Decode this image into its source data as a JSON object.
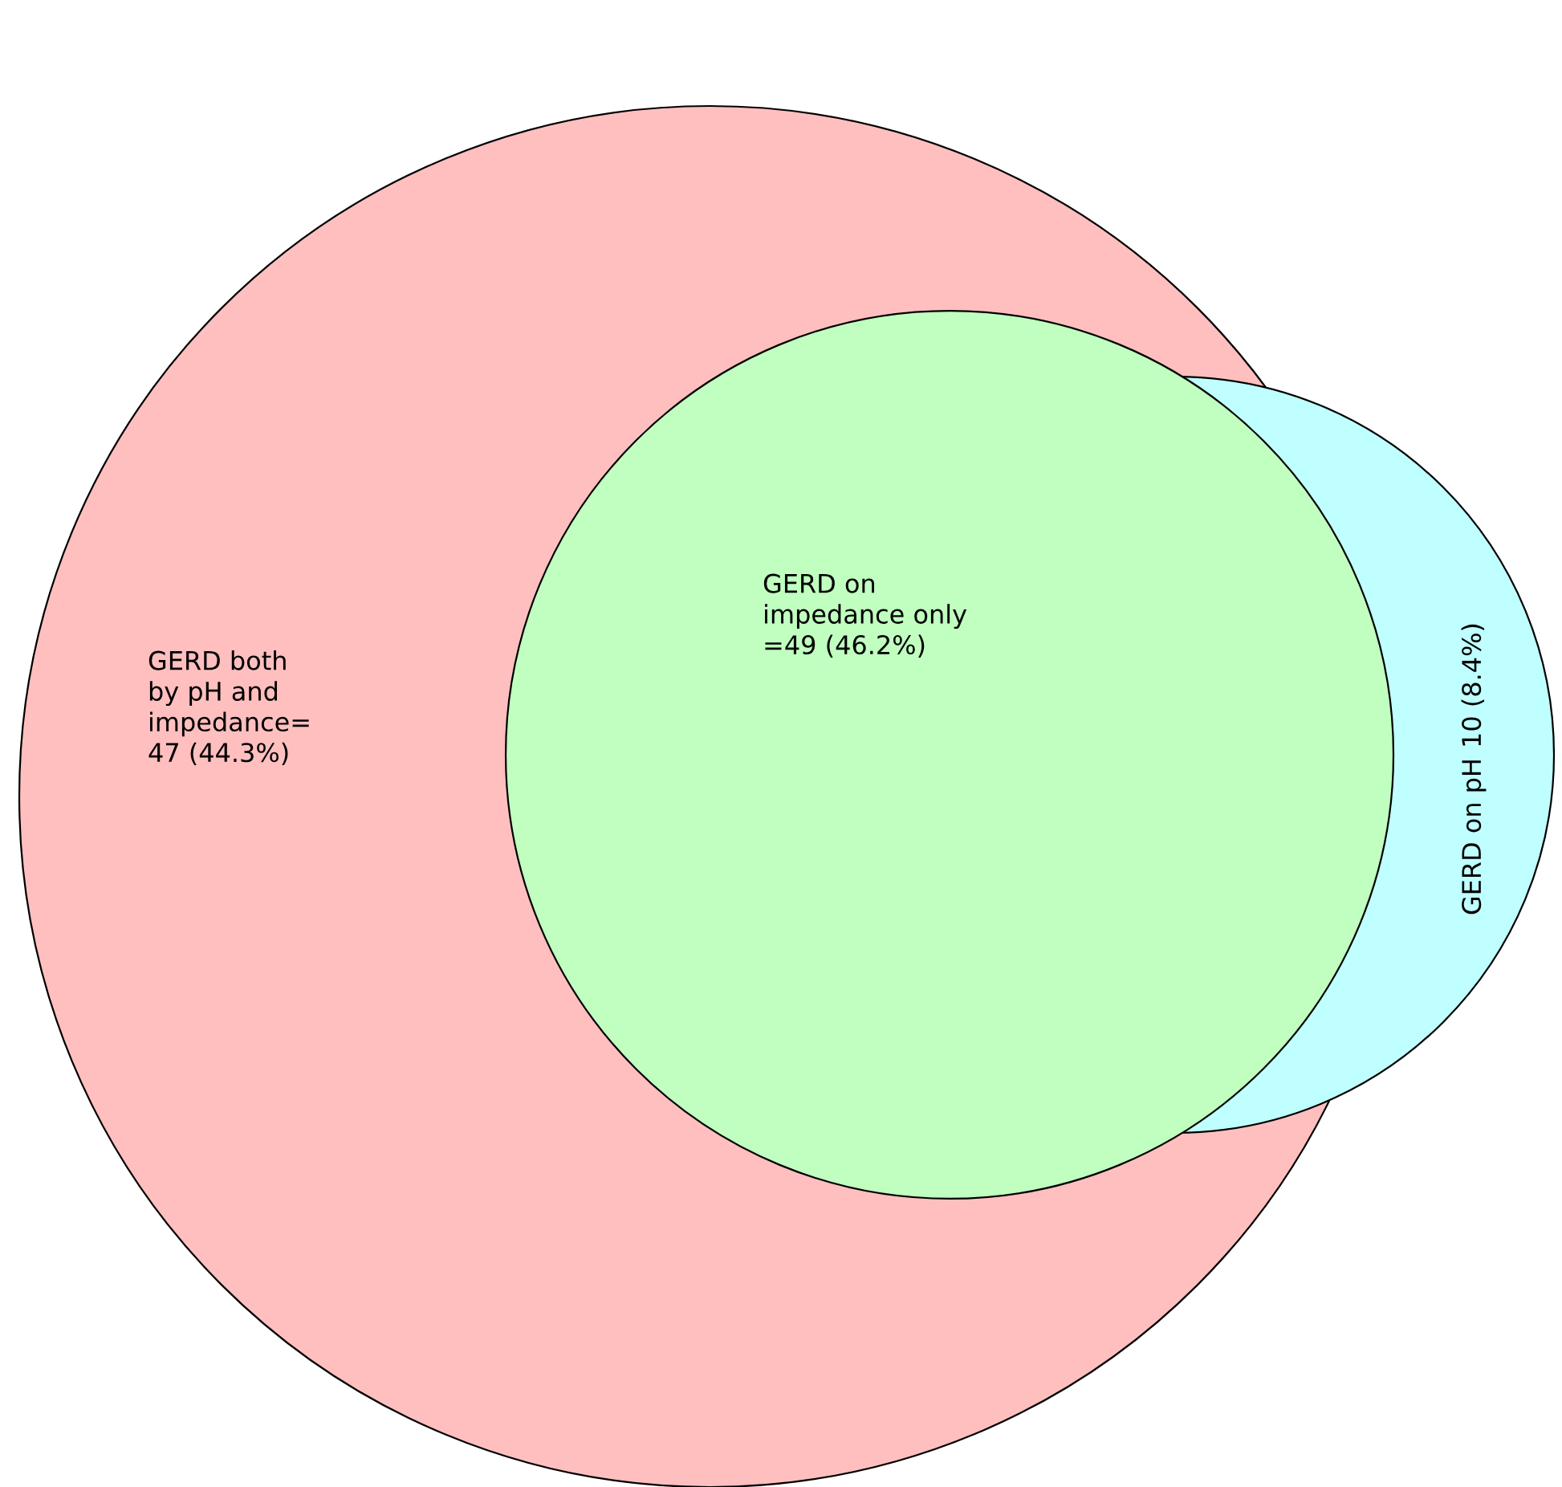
{
  "chart_data": {
    "type": "other",
    "categories": [
      "GERD both\nby pH and\nimpedance=",
      "GERD on pH",
      "GERD on\nimpedance only"
    ],
    "values": [
      47,
      10,
      49
    ],
    "value_labels": [
      "47 (44.3%)",
      "10 (8.4%)",
      "=49 (46.2%)"
    ],
    "colors": [
      "#ffbfbf",
      "#c0ffff",
      "#c0ffc0"
    ]
  }
}
